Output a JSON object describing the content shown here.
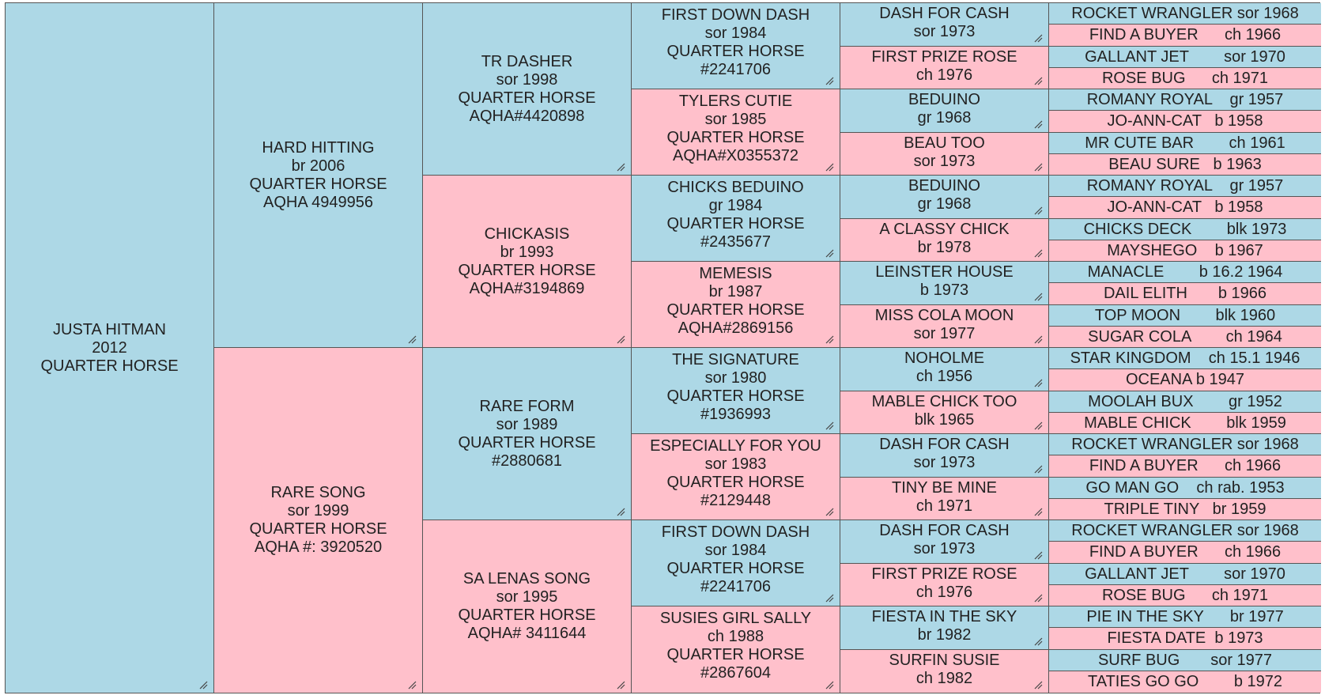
{
  "pedigree": {
    "subject": {
      "lines": [
        "JUSTA HITMAN",
        "2012",
        "QUARTER HORSE"
      ],
      "sex": "male"
    },
    "gen2": [
      {
        "lines": [
          "HARD HITTING",
          "br 2006",
          "QUARTER HORSE",
          "AQHA 4949956"
        ],
        "sex": "male"
      },
      {
        "lines": [
          "RARE SONG",
          "sor 1999",
          "QUARTER HORSE",
          "AQHA #: 3920520"
        ],
        "sex": "female"
      }
    ],
    "gen3": [
      {
        "lines": [
          "TR DASHER",
          "sor 1998",
          "QUARTER HORSE",
          "AQHA#4420898"
        ],
        "sex": "male"
      },
      {
        "lines": [
          "CHICKASIS",
          "br 1993",
          "QUARTER HORSE",
          "AQHA#3194869"
        ],
        "sex": "female"
      },
      {
        "lines": [
          "RARE FORM",
          "sor 1989",
          "QUARTER HORSE",
          "#2880681"
        ],
        "sex": "male"
      },
      {
        "lines": [
          "SA LENAS SONG",
          "sor 1995",
          "QUARTER HORSE",
          "AQHA# 3411644"
        ],
        "sex": "female"
      }
    ],
    "gen4": [
      {
        "lines": [
          "FIRST DOWN DASH",
          "sor 1984",
          "QUARTER HORSE",
          "#2241706"
        ],
        "sex": "male"
      },
      {
        "lines": [
          "TYLERS CUTIE",
          "sor 1985",
          "QUARTER HORSE",
          "AQHA#X0355372"
        ],
        "sex": "female"
      },
      {
        "lines": [
          "CHICKS BEDUINO",
          "gr 1984",
          "QUARTER HORSE",
          "#2435677"
        ],
        "sex": "male"
      },
      {
        "lines": [
          "MEMESIS",
          "br 1987",
          "QUARTER HORSE",
          "AQHA#2869156"
        ],
        "sex": "female"
      },
      {
        "lines": [
          "THE SIGNATURE",
          "sor 1980",
          "QUARTER HORSE",
          "#1936993"
        ],
        "sex": "male"
      },
      {
        "lines": [
          "ESPECIALLY FOR YOU",
          "sor 1983",
          "QUARTER HORSE",
          "#2129448"
        ],
        "sex": "female"
      },
      {
        "lines": [
          "FIRST DOWN DASH",
          "sor 1984",
          "QUARTER HORSE",
          "#2241706"
        ],
        "sex": "male"
      },
      {
        "lines": [
          "SUSIES GIRL SALLY",
          "ch 1988",
          "QUARTER HORSE",
          "#2867604"
        ],
        "sex": "female"
      }
    ],
    "gen5": [
      {
        "lines": [
          "DASH FOR CASH",
          "sor 1973"
        ],
        "sex": "male"
      },
      {
        "lines": [
          "FIRST PRIZE ROSE",
          "ch 1976"
        ],
        "sex": "female"
      },
      {
        "lines": [
          "BEDUINO",
          "gr 1968"
        ],
        "sex": "male"
      },
      {
        "lines": [
          "BEAU TOO",
          "sor 1973"
        ],
        "sex": "female"
      },
      {
        "lines": [
          "BEDUINO",
          "gr 1968"
        ],
        "sex": "male"
      },
      {
        "lines": [
          "A CLASSY CHICK",
          "br 1978"
        ],
        "sex": "female"
      },
      {
        "lines": [
          "LEINSTER HOUSE",
          "b 1973"
        ],
        "sex": "male"
      },
      {
        "lines": [
          "MISS COLA MOON",
          "sor 1977"
        ],
        "sex": "female"
      },
      {
        "lines": [
          "NOHOLME",
          "ch 1956"
        ],
        "sex": "male"
      },
      {
        "lines": [
          "MABLE CHICK TOO",
          "blk 1965"
        ],
        "sex": "female"
      },
      {
        "lines": [
          "DASH FOR CASH",
          "sor 1973"
        ],
        "sex": "male"
      },
      {
        "lines": [
          "TINY BE MINE",
          "ch 1971"
        ],
        "sex": "female"
      },
      {
        "lines": [
          "DASH FOR CASH",
          "sor 1973"
        ],
        "sex": "male"
      },
      {
        "lines": [
          "FIRST PRIZE ROSE",
          "ch 1976"
        ],
        "sex": "female"
      },
      {
        "lines": [
          "FIESTA IN THE SKY",
          "br 1982"
        ],
        "sex": "male"
      },
      {
        "lines": [
          "SURFIN SUSIE",
          "ch 1982"
        ],
        "sex": "female"
      }
    ],
    "gen6": [
      {
        "text": "ROCKET WRANGLER sor 1968",
        "sex": "male"
      },
      {
        "text": "FIND A BUYER      ch 1966",
        "sex": "female"
      },
      {
        "text": "GALLANT JET        sor 1970",
        "sex": "male"
      },
      {
        "text": "ROSE BUG      ch 1971",
        "sex": "female"
      },
      {
        "text": "ROMANY ROYAL    gr 1957",
        "sex": "male"
      },
      {
        "text": "JO-ANN-CAT   b 1958",
        "sex": "female"
      },
      {
        "text": "MR CUTE BAR        ch 1961",
        "sex": "male"
      },
      {
        "text": "BEAU SURE   b 1963",
        "sex": "female"
      },
      {
        "text": "ROMANY ROYAL    gr 1957",
        "sex": "male"
      },
      {
        "text": "JO-ANN-CAT   b 1958",
        "sex": "female"
      },
      {
        "text": "CHICKS DECK        blk 1973",
        "sex": "male"
      },
      {
        "text": "MAYSHEGO    b 1967",
        "sex": "female"
      },
      {
        "text": "MANACLE        b 16.2 1964",
        "sex": "male"
      },
      {
        "text": "DAIL ELITH       b 1966",
        "sex": "female"
      },
      {
        "text": "TOP MOON        blk 1960",
        "sex": "male"
      },
      {
        "text": "SUGAR COLA        ch 1964",
        "sex": "female"
      },
      {
        "text": "STAR KINGDOM    ch 15.1 1946",
        "sex": "male"
      },
      {
        "text": "OCEANA b 1947",
        "sex": "female"
      },
      {
        "text": "MOOLAH BUX        gr 1952",
        "sex": "male"
      },
      {
        "text": "MABLE CHICK        blk 1959",
        "sex": "female"
      },
      {
        "text": "ROCKET WRANGLER sor 1968",
        "sex": "male"
      },
      {
        "text": "FIND A BUYER      ch 1966",
        "sex": "female"
      },
      {
        "text": "GO MAN GO    ch rab. 1953",
        "sex": "male"
      },
      {
        "text": "TRIPLE TINY   br 1959",
        "sex": "female"
      },
      {
        "text": "ROCKET WRANGLER sor 1968",
        "sex": "male"
      },
      {
        "text": "FIND A BUYER      ch 1966",
        "sex": "female"
      },
      {
        "text": "GALLANT JET        sor 1970",
        "sex": "male"
      },
      {
        "text": "ROSE BUG      ch 1971",
        "sex": "female"
      },
      {
        "text": "PIE IN THE SKY      br 1977",
        "sex": "male"
      },
      {
        "text": "FIESTA DATE  b 1973",
        "sex": "female"
      },
      {
        "text": "SURF BUG       sor 1977",
        "sex": "male"
      },
      {
        "text": "TATIES GO GO        b 1972",
        "sex": "female"
      }
    ]
  },
  "colors": {
    "male": "#add8e6",
    "female": "#ffc0cb",
    "border": "#555555"
  },
  "icons": {
    "resize_handle": "resize-grip-icon"
  }
}
